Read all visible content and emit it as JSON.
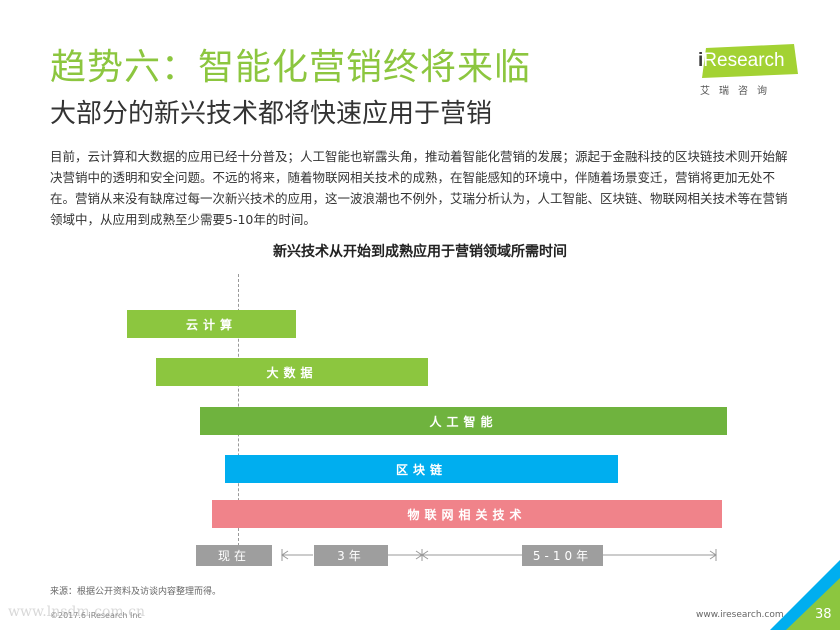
{
  "header": {
    "title": "趋势六：智能化营销终将来临",
    "subtitle": "大部分的新兴技术都将快速应用于营销"
  },
  "logo": {
    "prefix": "i",
    "text": "Research",
    "subtext": "艾瑞咨询",
    "color": "#a3d233"
  },
  "intro": "目前，云计算和大数据的应用已经十分普及；人工智能也崭露头角，推动着智能化营销的发展；源起于金融科技的区块链技术则开始解决营销中的透明和安全问题。不远的将来，随着物联网相关技术的成熟，在智能感知的环境中，伴随着场景变迁，营销将更加无处不在。营销从来没有缺席过每一次新兴技术的应用，这一波浪潮也不例外，艾瑞分析认为，人工智能、区块链、物联网相关技术等在营销领域中，从应用到成熟至少需要5-10年的时间。",
  "chart": {
    "title": "新兴技术从开始到成熟应用于营销领域所需时间",
    "bars": [
      {
        "label": "云计算",
        "color": "#8cc63f"
      },
      {
        "label": "大数据",
        "color": "#8cc63f"
      },
      {
        "label": "人工智能",
        "color": "#6fb33e"
      },
      {
        "label": "区块链",
        "color": "#00aeef"
      },
      {
        "label": "物联网相关技术",
        "color": "#f0838a"
      }
    ],
    "timeline": {
      "now": "现在",
      "mid": "3年",
      "far": "5-10年"
    }
  },
  "footer": {
    "source": "来源：根据公开资料及访谈内容整理而得。",
    "copyright": "©2017.6 iResearch Inc",
    "website": "www.iresearch.com.cn",
    "page": "38",
    "watermark": "www.lnsdm.com.cn"
  }
}
